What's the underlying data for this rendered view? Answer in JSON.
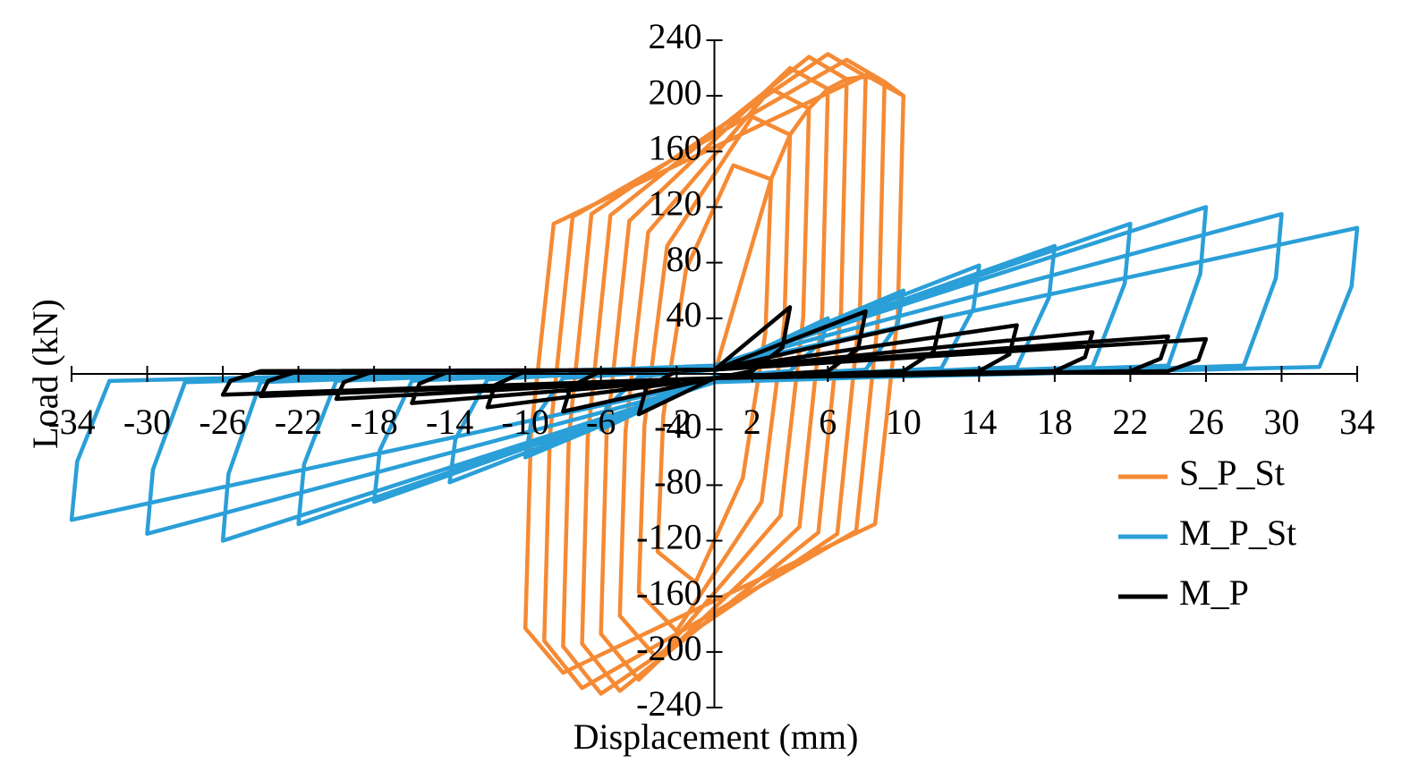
{
  "chart_data": {
    "type": "line",
    "xlabel": "Displacement (mm)",
    "ylabel": "Load (kN)",
    "xlim": [
      -34,
      34
    ],
    "ylim": [
      -240,
      240
    ],
    "xticks": [
      -34,
      -30,
      -26,
      -22,
      -18,
      -14,
      -10,
      -6,
      -2,
      2,
      6,
      10,
      14,
      18,
      22,
      26,
      30,
      34
    ],
    "yticks": [
      240,
      200,
      160,
      120,
      80,
      40,
      -40,
      -80,
      -120,
      -160,
      -200,
      -240
    ],
    "legend": "right",
    "series": [
      {
        "name": "S_P_St",
        "color": "#f58a34",
        "x": [
          0,
          3,
          2.7,
          1.5,
          -1,
          -3,
          -2.7,
          -1.5,
          1,
          3,
          4,
          3.7,
          2.5,
          -2,
          -4,
          -3.7,
          -2.5,
          2,
          4,
          5,
          4.7,
          3.5,
          -3,
          -5,
          -4.7,
          -3.5,
          3,
          5,
          6,
          5.7,
          4.5,
          -4,
          -6,
          -5.7,
          -4.5,
          4,
          6,
          7,
          6.7,
          5.5,
          -5,
          -7,
          -6.7,
          -5.5,
          5,
          7,
          8,
          7.7,
          6.5,
          -6,
          -8,
          -7.7,
          -6.5,
          6,
          8,
          9,
          8.7,
          7.5,
          -7,
          -9,
          -8.7,
          -7.5,
          7,
          9,
          10,
          9.7,
          8.5,
          -8,
          -10,
          -9.7,
          -8.5,
          8,
          10
        ],
        "values": [
          0,
          140,
          30,
          -75,
          -150,
          -128,
          -30,
          75,
          150,
          140,
          172,
          37,
          -92,
          -185,
          -157,
          -37,
          92,
          185,
          172,
          191,
          41,
          -102,
          -205,
          -174,
          -41,
          102,
          205,
          191,
          205,
          44,
          -110,
          -220,
          -187,
          -44,
          110,
          220,
          205,
          212,
          46,
          -114,
          -228,
          -194,
          -46,
          114,
          228,
          212,
          214,
          46,
          -115,
          -230,
          -196,
          -46,
          115,
          230,
          214,
          210,
          45,
          -113,
          -226,
          -192,
          -45,
          113,
          226,
          210,
          200,
          43,
          -108,
          -215,
          -183,
          -43,
          108,
          215,
          200
        ]
      },
      {
        "name": "M_P_St",
        "color": "#2a9fd8",
        "x": [
          0,
          6,
          5.7,
          4,
          0,
          -6,
          -5.7,
          -4,
          0,
          10,
          9.7,
          8,
          0,
          -10,
          -9.7,
          -8,
          0,
          14,
          13.7,
          12,
          0,
          -14,
          -13.7,
          -12,
          0,
          18,
          17.7,
          16,
          0,
          -18,
          -17.7,
          -16,
          0,
          22,
          21.7,
          20,
          0,
          -22,
          -21.7,
          -20,
          0,
          26,
          25.7,
          24,
          0,
          -26,
          -25.7,
          -24,
          0,
          30,
          29.7,
          28,
          0,
          -30,
          -29.7,
          -28,
          0,
          34,
          33.7,
          32,
          0,
          -34,
          -33.7,
          -32,
          0
        ],
        "values": [
          2,
          40,
          24,
          2,
          -2,
          -40,
          -24,
          -2,
          3,
          60,
          36,
          3,
          -3,
          -60,
          -36,
          -3,
          4,
          78,
          47,
          4,
          -4,
          -78,
          -47,
          -4,
          5,
          92,
          55,
          5,
          -5,
          -92,
          -55,
          -5,
          5,
          108,
          65,
          5,
          -5,
          -108,
          -65,
          -5,
          6,
          120,
          72,
          6,
          -6,
          -120,
          -72,
          -6,
          6,
          115,
          69,
          6,
          -6,
          -115,
          -69,
          -6,
          5,
          105,
          63,
          5,
          -5,
          -105,
          -63,
          -5,
          5
        ]
      },
      {
        "name": "M_P",
        "color": "#000000",
        "x": [
          0,
          4,
          3.6,
          2,
          0,
          -4,
          -3.6,
          -2,
          0,
          8,
          7.6,
          6,
          0,
          -8,
          -7.6,
          -6,
          0,
          12,
          11.6,
          10,
          0,
          -12,
          -11.6,
          -10,
          0,
          16,
          15.6,
          14,
          0,
          -16,
          -15.6,
          -14,
          0,
          20,
          19.6,
          18,
          0,
          -20,
          -19.6,
          -18,
          0,
          24,
          23.6,
          22,
          0,
          -24,
          -23.6,
          -22,
          0,
          26,
          25.6,
          24,
          0,
          -26,
          -25.6,
          -24,
          0
        ],
        "values": [
          3,
          48,
          19,
          2,
          -3,
          -29,
          -10,
          2,
          3,
          45,
          18,
          2,
          -3,
          -27,
          -9,
          2,
          3,
          40,
          16,
          2,
          -3,
          -24,
          -8,
          2,
          3,
          35,
          14,
          2,
          -3,
          -21,
          -7,
          2,
          3,
          30,
          12,
          2,
          -3,
          -18,
          -6,
          2,
          3,
          27,
          11,
          2,
          -3,
          -16,
          -5,
          2,
          3,
          25,
          10,
          2,
          -3,
          -15,
          -5,
          2,
          3
        ]
      }
    ]
  }
}
